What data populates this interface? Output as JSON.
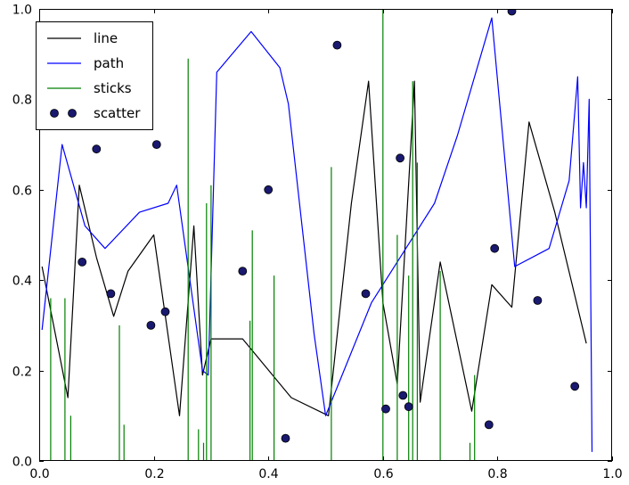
{
  "figure": {
    "background": "#ffffff",
    "frame_color": "#000000"
  },
  "chart_data": {
    "type": "mixed",
    "title": "",
    "xlabel": "",
    "ylabel": "",
    "xlim": [
      0.0,
      1.0
    ],
    "ylim": [
      0.0,
      1.0
    ],
    "grid": false,
    "tick_direction": "in",
    "xtick_values": [
      0.0,
      0.2,
      0.4,
      0.6,
      0.8,
      1.0
    ],
    "xtick_labels": [
      "0.0",
      "0.2",
      "0.4",
      "0.6",
      "0.8",
      "1.0"
    ],
    "ytick_values": [
      0.0,
      0.2,
      0.4,
      0.6,
      0.8,
      1.0
    ],
    "ytick_labels": [
      "0.0",
      "0.2",
      "0.4",
      "0.6",
      "0.8",
      "1.0"
    ],
    "legend": {
      "position": "upper-left",
      "entries": [
        {
          "label": "line",
          "style": "line",
          "color": "#000000"
        },
        {
          "label": "path",
          "style": "line",
          "color": "#0000ff"
        },
        {
          "label": "sticks",
          "style": "line",
          "color": "#008000"
        },
        {
          "label": "scatter",
          "style": "scatter",
          "color": "#191970"
        }
      ]
    },
    "series": [
      {
        "name": "line",
        "type": "line",
        "color": "#000000",
        "points": [
          [
            0.005,
            0.43
          ],
          [
            0.05,
            0.14
          ],
          [
            0.07,
            0.61
          ],
          [
            0.1,
            0.45
          ],
          [
            0.13,
            0.32
          ],
          [
            0.155,
            0.42
          ],
          [
            0.2,
            0.5
          ],
          [
            0.245,
            0.1
          ],
          [
            0.27,
            0.52
          ],
          [
            0.285,
            0.19
          ],
          [
            0.3,
            0.27
          ],
          [
            0.355,
            0.27
          ],
          [
            0.44,
            0.14
          ],
          [
            0.505,
            0.1
          ],
          [
            0.545,
            0.57
          ],
          [
            0.575,
            0.84
          ],
          [
            0.6,
            0.35
          ],
          [
            0.625,
            0.17
          ],
          [
            0.655,
            0.84
          ],
          [
            0.665,
            0.13
          ],
          [
            0.7,
            0.44
          ],
          [
            0.755,
            0.11
          ],
          [
            0.79,
            0.39
          ],
          [
            0.825,
            0.34
          ],
          [
            0.855,
            0.75
          ],
          [
            0.9,
            0.55
          ],
          [
            0.955,
            0.26
          ]
        ]
      },
      {
        "name": "path",
        "type": "line",
        "color": "#0000ff",
        "points": [
          [
            0.005,
            0.29
          ],
          [
            0.04,
            0.7
          ],
          [
            0.08,
            0.52
          ],
          [
            0.115,
            0.47
          ],
          [
            0.175,
            0.55
          ],
          [
            0.225,
            0.57
          ],
          [
            0.24,
            0.61
          ],
          [
            0.285,
            0.2
          ],
          [
            0.295,
            0.19
          ],
          [
            0.31,
            0.86
          ],
          [
            0.37,
            0.95
          ],
          [
            0.42,
            0.87
          ],
          [
            0.435,
            0.79
          ],
          [
            0.48,
            0.28
          ],
          [
            0.5,
            0.1
          ],
          [
            0.58,
            0.35
          ],
          [
            0.69,
            0.57
          ],
          [
            0.73,
            0.72
          ],
          [
            0.79,
            0.98
          ],
          [
            0.83,
            0.43
          ],
          [
            0.875,
            0.46
          ],
          [
            0.89,
            0.47
          ],
          [
            0.925,
            0.62
          ],
          [
            0.94,
            0.85
          ],
          [
            0.945,
            0.56
          ],
          [
            0.95,
            0.66
          ],
          [
            0.955,
            0.56
          ],
          [
            0.96,
            0.8
          ],
          [
            0.965,
            0.02
          ]
        ]
      },
      {
        "name": "sticks",
        "type": "sticks",
        "color": "#008000",
        "baseline": 0.0,
        "points": [
          [
            0.02,
            0.36
          ],
          [
            0.045,
            0.36
          ],
          [
            0.055,
            0.1
          ],
          [
            0.14,
            0.3
          ],
          [
            0.148,
            0.08
          ],
          [
            0.26,
            0.89
          ],
          [
            0.278,
            0.07
          ],
          [
            0.287,
            0.04
          ],
          [
            0.292,
            0.57
          ],
          [
            0.3,
            0.61
          ],
          [
            0.368,
            0.31
          ],
          [
            0.372,
            0.51
          ],
          [
            0.41,
            0.41
          ],
          [
            0.51,
            0.65
          ],
          [
            0.6,
            1.0
          ],
          [
            0.625,
            0.5
          ],
          [
            0.645,
            0.41
          ],
          [
            0.652,
            0.84
          ],
          [
            0.66,
            0.66
          ],
          [
            0.7,
            0.42
          ],
          [
            0.752,
            0.04
          ],
          [
            0.76,
            0.19
          ]
        ]
      },
      {
        "name": "scatter",
        "type": "scatter",
        "color": "#191970",
        "edge_color": "#000000",
        "marker_radius": 4.5,
        "points": [
          [
            0.075,
            0.44
          ],
          [
            0.1,
            0.69
          ],
          [
            0.125,
            0.37
          ],
          [
            0.195,
            0.3
          ],
          [
            0.205,
            0.7
          ],
          [
            0.22,
            0.33
          ],
          [
            0.355,
            0.42
          ],
          [
            0.4,
            0.6
          ],
          [
            0.43,
            0.05
          ],
          [
            0.52,
            0.92
          ],
          [
            0.57,
            0.37
          ],
          [
            0.605,
            0.115
          ],
          [
            0.63,
            0.67
          ],
          [
            0.635,
            0.145
          ],
          [
            0.645,
            0.12
          ],
          [
            0.785,
            0.08
          ],
          [
            0.795,
            0.47
          ],
          [
            0.825,
            0.995
          ],
          [
            0.87,
            0.355
          ],
          [
            0.935,
            0.165
          ]
        ]
      }
    ]
  }
}
